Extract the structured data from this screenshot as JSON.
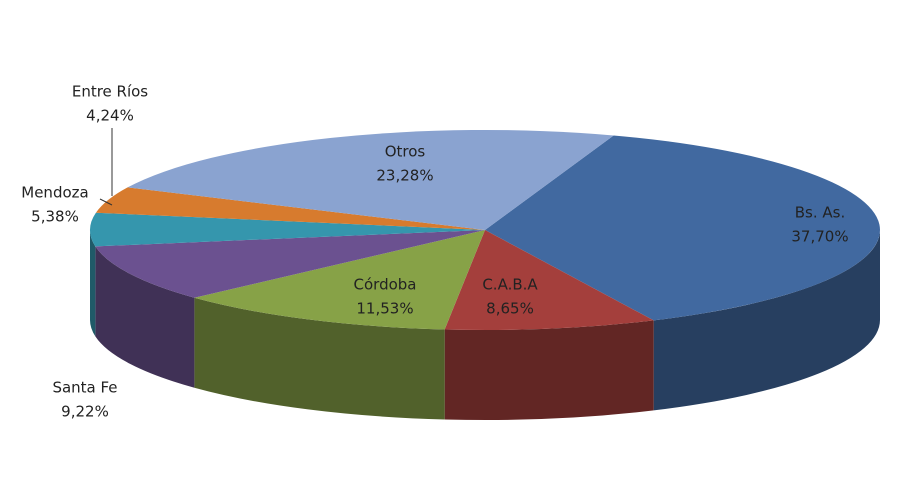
{
  "chart_data": {
    "type": "pie",
    "categories": [
      "Bs. As.",
      "C.A.B.A",
      "Córdoba",
      "Santa Fe",
      "Mendoza",
      "Entre Ríos",
      "Otros"
    ],
    "values": [
      37.7,
      8.65,
      11.53,
      9.22,
      5.38,
      4.24,
      23.28
    ],
    "value_labels": [
      "37,70%",
      "8,65%",
      "11,53%",
      "9,22%",
      "5,38%",
      "4,24%",
      "23,28%"
    ],
    "colors": [
      "#4169a0",
      "#a43f3c",
      "#87a247",
      "#6b5190",
      "#3596ad",
      "#d77b2e",
      "#8aa3d0"
    ]
  }
}
